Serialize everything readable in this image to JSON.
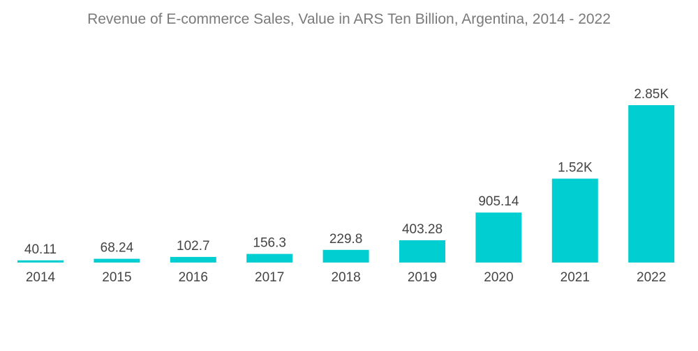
{
  "chart_data": {
    "type": "bar",
    "title": "Revenue of E-commerce Sales, Value in ARS Ten Billion, Argentina, 2014 - 2022",
    "categories": [
      "2014",
      "2015",
      "2016",
      "2017",
      "2018",
      "2019",
      "2020",
      "2021",
      "2022"
    ],
    "values": [
      40.11,
      68.24,
      102.7,
      156.3,
      229.8,
      403.28,
      905.14,
      1520,
      2850
    ],
    "data_labels": [
      "40.11",
      "68.24",
      "102.7",
      "156.3",
      "229.8",
      "403.28",
      "905.14",
      "1.52K",
      "2.85K"
    ],
    "xlabel": "",
    "ylabel": "",
    "ylim": [
      0,
      2850
    ],
    "grid": false,
    "legend": "none",
    "bar_color": "#00ced1"
  }
}
